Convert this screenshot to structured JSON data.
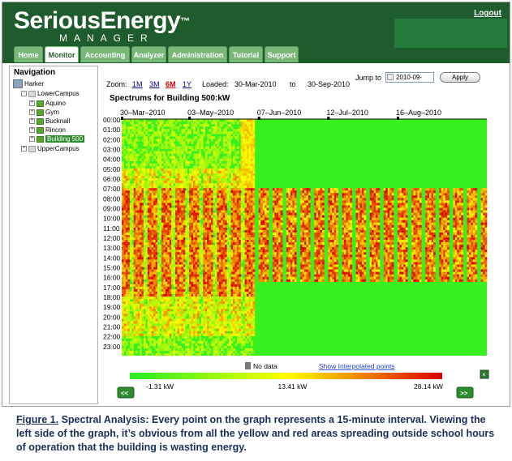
{
  "header": {
    "logo_main": "SeriousEnergy",
    "logo_tm": "™",
    "logo_sub": "MANAGER",
    "logout_label": "Logout"
  },
  "tabs": [
    {
      "label": "Home"
    },
    {
      "label": "Monitor"
    },
    {
      "label": "Accounting"
    },
    {
      "label": "Analyzer"
    },
    {
      "label": "Administration"
    },
    {
      "label": "Tutorial"
    },
    {
      "label": "Support"
    }
  ],
  "active_tab": "Monitor",
  "navigation": {
    "title": "Navigation",
    "tree": [
      {
        "label": "Harker",
        "level": 0,
        "icon": "campus-icon",
        "expander": ""
      },
      {
        "label": "LowerCampus",
        "level": 1,
        "icon": "folder-icon",
        "expander": "-"
      },
      {
        "label": "Aquino",
        "level": 2,
        "icon": "building-icon",
        "expander": "+"
      },
      {
        "label": "Gym",
        "level": 2,
        "icon": "building-icon",
        "expander": "+"
      },
      {
        "label": "Bucknall",
        "level": 2,
        "icon": "building-icon",
        "expander": "+"
      },
      {
        "label": "Rincon",
        "level": 2,
        "icon": "building-icon",
        "expander": "+"
      },
      {
        "label": "Building 500",
        "level": 2,
        "icon": "building-icon",
        "expander": "+",
        "selected": true
      },
      {
        "label": "UpperCampus",
        "level": 1,
        "icon": "folder-icon",
        "expander": "+"
      }
    ]
  },
  "toolbar": {
    "zoom_label": "Zoom:",
    "zoom_options": [
      "1M",
      "3M",
      "6M",
      "1Y"
    ],
    "zoom_active": "6M",
    "loaded_label": "Loaded:",
    "loaded_from": "30-Mar-2010",
    "loaded_to_word": "to",
    "loaded_to": "30-Sep-2010",
    "jump_label": "Jump to",
    "jump_value": "2010-09-",
    "apply_label": "Apply"
  },
  "chart_data": {
    "type": "heatmap",
    "title": "Spectrums for Building 500:kW",
    "x_tick_labels": [
      "30–Mar–2010",
      "03–May–2010",
      "07–Jun–2010",
      "12–Jul–2010",
      "16–Aug–2010"
    ],
    "x_range": [
      "2010-03-30",
      "2010-09-30"
    ],
    "y_tick_labels": [
      "00:00",
      "01:00",
      "02:00",
      "03:00",
      "04:00",
      "05:00",
      "06:00",
      "07:00",
      "08:00",
      "09:00",
      "10:00",
      "11:00",
      "12:00",
      "13:00",
      "14:00",
      "15:00",
      "16:00",
      "17:00",
      "18:00",
      "19:00",
      "20:00",
      "21:00",
      "22:00",
      "23:00"
    ],
    "y_range": [
      "00:00",
      "23:45"
    ],
    "interval_minutes": 15,
    "colorscale": {
      "min": -1.31,
      "mid": 13.41,
      "max": 28.14,
      "unit": "kW",
      "colors": [
        "#22ee22",
        "#ffff00",
        "#dd0000"
      ]
    },
    "min_label": "-1.31 kW",
    "mid_label": "13.41 kW",
    "max_label": "28.14 kW",
    "no_data_label": "No data",
    "no_data_color": "#777777",
    "interp_link": "Show Interpolated points"
  },
  "pager": {
    "prev_label": "<<",
    "next_label": ">>"
  },
  "colors": {
    "header_green": "#1e5c2e",
    "tab_green": "#7ab87a",
    "caption_blue": "#1b2f5a"
  },
  "caption": {
    "label": "Figure 1.",
    "text": " Spectral Analysis: Every point on the graph represents a 15-minute interval.  Viewing the left side of the graph, it’s obvious from all the yellow and red areas spreading outside school hours of operation that the building is wasting energy."
  }
}
